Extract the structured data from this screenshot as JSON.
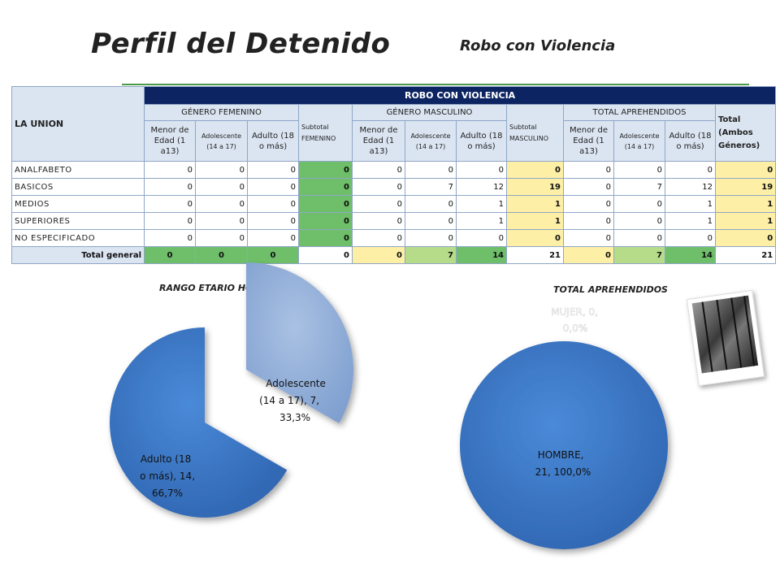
{
  "page": {
    "title": "Perfil del Detenido",
    "subtitle": "Robo con Violencia"
  },
  "table": {
    "row_header": "LA UNION",
    "main_header": "ROBO CON VIOLENCIA",
    "groups": {
      "female": "GÉNERO FEMENINO",
      "female_subtotal": "Subtotal FEMENINO",
      "male": "GÉNERO MASCULINO",
      "male_subtotal": "Subtotal MASCULINO",
      "total": "TOTAL APREHENDIDOS",
      "grand_total": "Total (Ambos Géneros)"
    },
    "sub_headers": {
      "minor": "Menor de Edad (1 a13)",
      "adolescent": "Adolescente (14 a 17)",
      "adult": "Adulto (18 o más)"
    },
    "rows": [
      {
        "label": "ANALFABETO",
        "cells": [
          "0",
          "0",
          "0",
          "0",
          "0",
          "0",
          "0",
          "0",
          "0",
          "0",
          "0",
          "0"
        ]
      },
      {
        "label": "BASICOS",
        "cells": [
          "0",
          "0",
          "0",
          "0",
          "0",
          "7",
          "12",
          "19",
          "0",
          "7",
          "12",
          "19"
        ]
      },
      {
        "label": "MEDIOS",
        "cells": [
          "0",
          "0",
          "0",
          "0",
          "0",
          "0",
          "1",
          "1",
          "0",
          "0",
          "1",
          "1"
        ]
      },
      {
        "label": "SUPERIORES",
        "cells": [
          "0",
          "0",
          "0",
          "0",
          "0",
          "0",
          "1",
          "1",
          "0",
          "0",
          "1",
          "1"
        ]
      },
      {
        "label": "NO ESPECIFICADO",
        "cells": [
          "0",
          "0",
          "0",
          "0",
          "0",
          "0",
          "0",
          "0",
          "0",
          "0",
          "0",
          "0"
        ]
      }
    ],
    "total_row": {
      "label": "Total general",
      "cells": [
        "0",
        "0",
        "0",
        "0",
        "0",
        "7",
        "14",
        "21",
        "0",
        "7",
        "14",
        "21"
      ]
    }
  },
  "chart_data": [
    {
      "type": "pie",
      "title": "RANGO ETARIO HOMBRES",
      "slices": [
        {
          "label": "Adolescente (14 a 17), 7, 33,3%",
          "value": 7,
          "color": "#92aed6"
        },
        {
          "label": "Adulto (18 o más), 14, 66,7%",
          "value": 14,
          "color": "#3a78c8"
        }
      ]
    },
    {
      "type": "pie",
      "title": "TOTAL APREHENDIDOS",
      "slices": [
        {
          "label": "HOMBRE, 21, 100,0%",
          "value": 21,
          "color": "#3a78c8"
        },
        {
          "label": "MUJER, 0, 0,0%",
          "value": 0,
          "color": "#92aed6"
        }
      ]
    }
  ]
}
